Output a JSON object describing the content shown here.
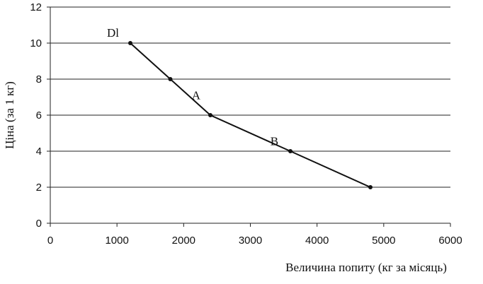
{
  "chart_data": {
    "type": "line",
    "title": "",
    "xlabel": "Величина попиту (кг за місяць)",
    "ylabel": "Ціна (за 1 кг)",
    "xlim": [
      0,
      6000
    ],
    "ylim": [
      0,
      12
    ],
    "x_ticks": [
      "0",
      "1000",
      "2000",
      "3000",
      "4000",
      "5000",
      "6000"
    ],
    "y_ticks": [
      "0",
      "2",
      "4",
      "6",
      "8",
      "10",
      "12"
    ],
    "grid": "horizontal",
    "series": [
      {
        "x": [
          1200,
          1800,
          2400,
          3600,
          4800
        ],
        "y": [
          10,
          8,
          6,
          4,
          2
        ]
      }
    ],
    "annotations": [
      {
        "text": "Dl",
        "x": 1200,
        "y": 10
      },
      {
        "text": "A",
        "x": 2100,
        "y": 7
      },
      {
        "text": "B",
        "x": 3300,
        "y": 4.5
      }
    ]
  }
}
